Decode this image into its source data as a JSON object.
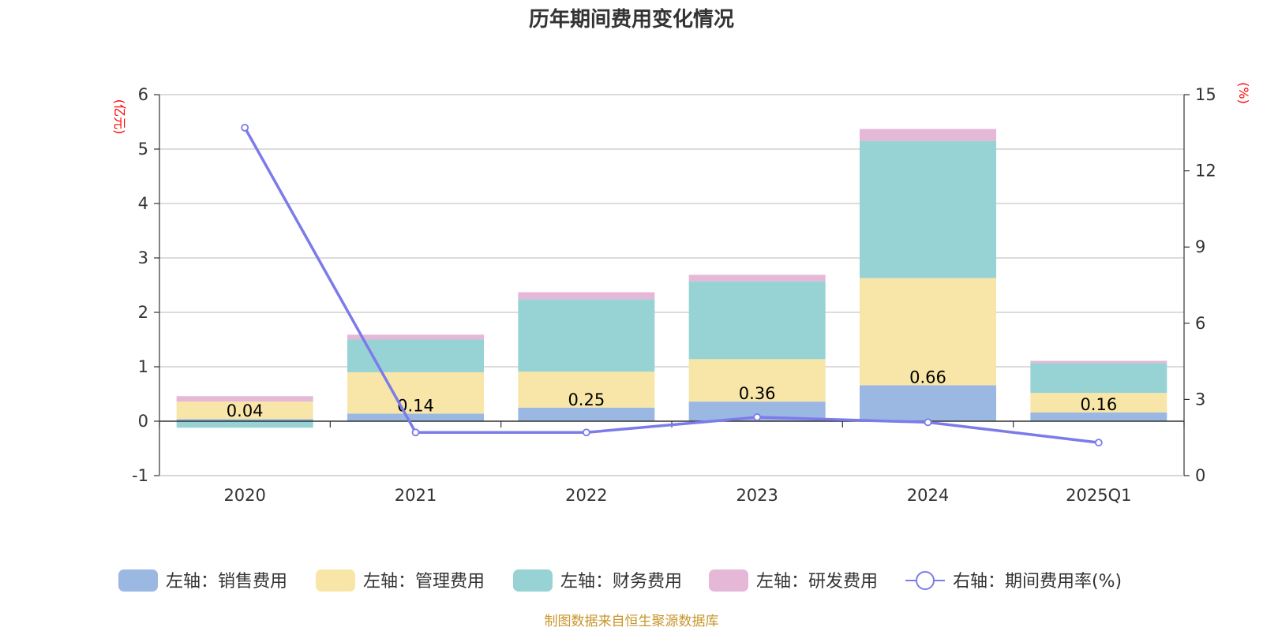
{
  "chart_data": {
    "type": "bar",
    "title": "历年期间费用变化情况",
    "categories": [
      "2020",
      "2021",
      "2022",
      "2023",
      "2024",
      "2025Q1"
    ],
    "left_axis": {
      "unit": "(亿元)",
      "ylim": [
        -1,
        6
      ],
      "ticks": [
        -1,
        0,
        1,
        2,
        3,
        4,
        5,
        6
      ]
    },
    "right_axis": {
      "unit": "(%)",
      "ylim": [
        0,
        15
      ],
      "ticks": [
        0,
        3,
        6,
        9,
        12,
        15
      ]
    },
    "stacked": true,
    "grid": true,
    "legend_position": "bottom",
    "series": [
      {
        "name": "左轴：销售费用",
        "axis": "left",
        "type": "bar",
        "color": "#9bb8e3",
        "values": [
          0.04,
          0.14,
          0.25,
          0.36,
          0.66,
          0.16
        ],
        "labels": [
          "0.04",
          "0.14",
          "0.25",
          "0.36",
          "0.66",
          "0.16"
        ]
      },
      {
        "name": "左轴：管理费用",
        "axis": "left",
        "type": "bar",
        "color": "#f8e6a8",
        "values": [
          0.32,
          0.76,
          0.66,
          0.78,
          1.97,
          0.36
        ]
      },
      {
        "name": "左轴：财务费用",
        "axis": "left",
        "type": "bar",
        "color": "#97d3d4",
        "values": [
          -0.12,
          0.6,
          1.33,
          1.43,
          2.52,
          0.55
        ]
      },
      {
        "name": "左轴：研发费用",
        "axis": "left",
        "type": "bar",
        "color": "#e6b8d8",
        "values": [
          0.1,
          0.09,
          0.13,
          0.12,
          0.22,
          0.04
        ]
      },
      {
        "name": "右轴：期间费用率(%)",
        "axis": "right",
        "type": "line",
        "color": "#7b7bea",
        "values": [
          13.7,
          1.7,
          1.7,
          2.3,
          2.1,
          1.3
        ]
      }
    ]
  },
  "footer": "制图数据来自恒生聚源数据库"
}
